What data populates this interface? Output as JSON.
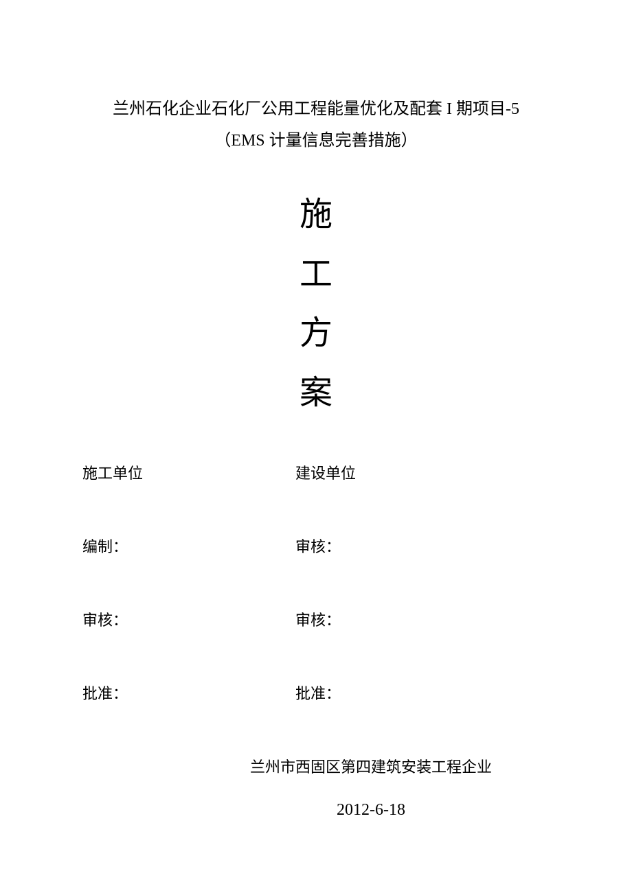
{
  "title": {
    "line1": "兰州石化企业石化厂公用工程能量优化及配套 I 期项目-5",
    "line2": "（EMS 计量信息完善措施）"
  },
  "vertical_title": {
    "char1": "施",
    "char2": "工",
    "char3": "方",
    "char4": "案"
  },
  "form": {
    "row1": {
      "left": "施工单位",
      "right": "建设单位"
    },
    "row2": {
      "left": "编制：",
      "right": "审核："
    },
    "row3": {
      "left": "审核：",
      "right": "审核："
    },
    "row4": {
      "left": "批准：",
      "right": "批准："
    }
  },
  "footer": {
    "company": "兰州市西固区第四建筑安装工程企业",
    "date": "2012-6-18"
  },
  "styling": {
    "background_color": "#ffffff",
    "text_color": "#000000",
    "title_fontsize": 24,
    "vertical_char_fontsize": 48,
    "form_fontsize": 22,
    "footer_fontsize": 22,
    "date_fontsize": 24,
    "font_family": "SimSun"
  }
}
